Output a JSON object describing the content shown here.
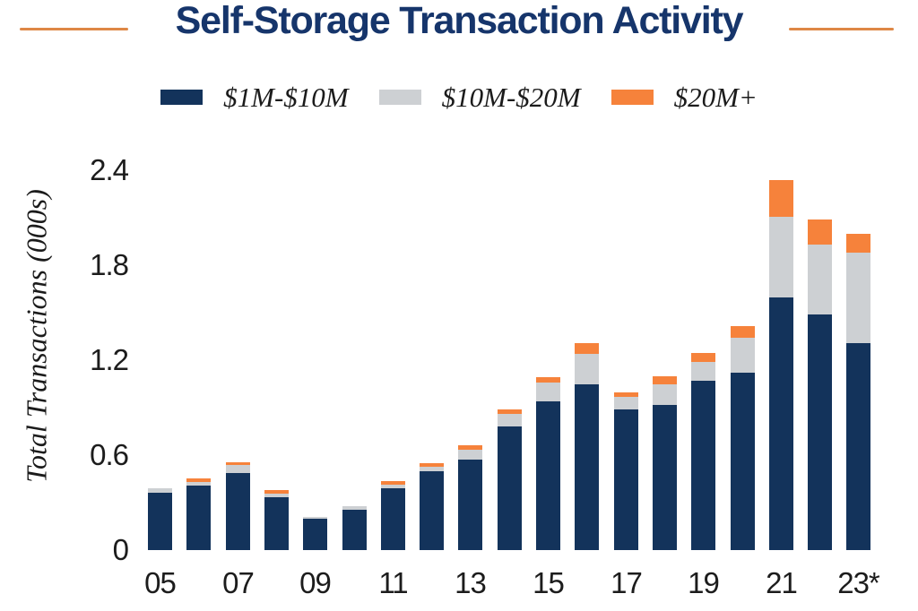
{
  "header": {
    "title": "Self-Storage Transaction Activity"
  },
  "legend": {
    "items": [
      {
        "label": "$1M-$10M",
        "color": "#13335B"
      },
      {
        "label": "$10M-$20M",
        "color": "#CDD0D3"
      },
      {
        "label": "$20M+",
        "color": "#F6823B"
      }
    ]
  },
  "colors": {
    "title_navy": "#16356B",
    "rule_orange": "#DE8746",
    "bar_navy": "#13335B",
    "bar_gray": "#CDD0D3",
    "bar_orange": "#F6823B",
    "tick_text": "#1C1C1C",
    "background": "#FFFFFF"
  },
  "chart_data": {
    "type": "bar",
    "stacked": true,
    "title": "Self-Storage Transaction Activity",
    "ylabel": "Total Transactions (000s)",
    "xlabel": "",
    "ylim": [
      0,
      2.4
    ],
    "grid": false,
    "legend_position": "top",
    "yticks": [
      0,
      0.6,
      1.2,
      1.8,
      2.4
    ],
    "ytick_labels": [
      "0",
      "0.6",
      "1.2",
      "1.8",
      "2.4"
    ],
    "categories": [
      "05",
      "06",
      "07",
      "08",
      "09",
      "10",
      "11",
      "12",
      "13",
      "14",
      "15",
      "16",
      "17",
      "18",
      "19",
      "20",
      "21",
      "22",
      "23*"
    ],
    "xtick_indices": [
      0,
      2,
      4,
      6,
      8,
      10,
      12,
      14,
      16,
      18
    ],
    "xtick_labels": [
      "05",
      "07",
      "09",
      "11",
      "13",
      "15",
      "17",
      "19",
      "21",
      "23*"
    ],
    "series": [
      {
        "name": "$1M-$10M",
        "color": "#13335B",
        "values": [
          0.36,
          0.41,
          0.49,
          0.34,
          0.2,
          0.26,
          0.39,
          0.5,
          0.57,
          0.78,
          0.94,
          1.05,
          0.89,
          0.92,
          1.07,
          1.12,
          1.6,
          1.49,
          1.31
        ]
      },
      {
        "name": "$10M-$20M",
        "color": "#CDD0D3",
        "values": [
          0.03,
          0.02,
          0.05,
          0.02,
          0.01,
          0.02,
          0.02,
          0.03,
          0.06,
          0.08,
          0.12,
          0.19,
          0.08,
          0.13,
          0.12,
          0.22,
          0.51,
          0.44,
          0.57
        ]
      },
      {
        "name": "$20M+",
        "color": "#F6823B",
        "values": [
          0.0,
          0.02,
          0.015,
          0.02,
          0.0,
          0.0,
          0.025,
          0.025,
          0.03,
          0.03,
          0.035,
          0.07,
          0.03,
          0.05,
          0.055,
          0.075,
          0.23,
          0.16,
          0.12
        ]
      }
    ]
  }
}
